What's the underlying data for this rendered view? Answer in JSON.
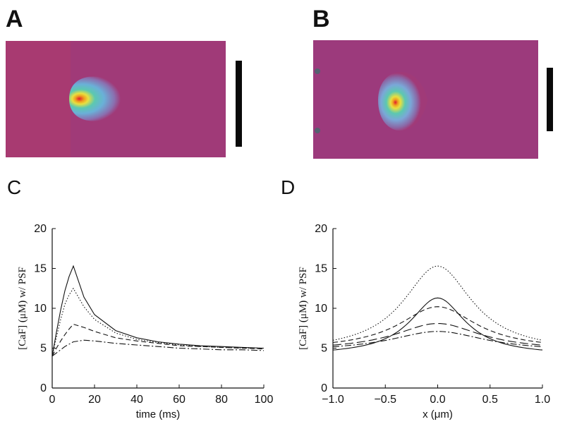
{
  "panels": {
    "A": {
      "letter": "A"
    },
    "B": {
      "letter": "B"
    },
    "C": {
      "letter": "C"
    },
    "D": {
      "letter": "D"
    }
  },
  "heatmap_colors": {
    "background": "#a03a78",
    "outer": "#7aa8d8",
    "mid": "#5cc8b0",
    "inner": "#e8e040",
    "core": "#e01a30"
  },
  "chart_data": [
    {
      "id": "C",
      "type": "line",
      "xlabel": "time (ms)",
      "ylabel": "[CaF] (μM) w/ PSF",
      "xlim": [
        0,
        100
      ],
      "ylim": [
        0,
        20
      ],
      "xticks": [
        "0",
        "20",
        "40",
        "60",
        "80",
        "100"
      ],
      "yticks": [
        "0",
        "5",
        "10",
        "15",
        "20"
      ],
      "grid": false,
      "series": [
        {
          "style": "solid",
          "x": [
            0,
            2,
            4,
            6,
            8,
            10,
            15,
            20,
            30,
            40,
            50,
            60,
            70,
            80,
            90,
            100
          ],
          "values": [
            4.0,
            7.0,
            9.8,
            12.2,
            14.0,
            15.3,
            11.4,
            9.2,
            7.2,
            6.3,
            5.8,
            5.5,
            5.3,
            5.2,
            5.1,
            5.0
          ]
        },
        {
          "style": "dotted",
          "x": [
            0,
            2,
            4,
            6,
            8,
            10,
            15,
            20,
            30,
            40,
            50,
            60,
            70,
            80,
            90,
            100
          ],
          "values": [
            4.0,
            6.4,
            8.6,
            10.5,
            11.7,
            12.5,
            10.2,
            8.6,
            6.9,
            6.1,
            5.7,
            5.4,
            5.2,
            5.1,
            5.0,
            5.0
          ]
        },
        {
          "style": "dashed",
          "x": [
            0,
            2,
            4,
            6,
            8,
            10,
            15,
            20,
            30,
            40,
            50,
            60,
            70,
            80,
            90,
            100
          ],
          "values": [
            4.0,
            5.0,
            5.9,
            6.7,
            7.4,
            8.0,
            7.6,
            7.1,
            6.3,
            5.9,
            5.6,
            5.3,
            5.2,
            5.1,
            5.0,
            4.9
          ]
        },
        {
          "style": "dashdot",
          "x": [
            0,
            2,
            4,
            6,
            8,
            10,
            15,
            20,
            30,
            40,
            50,
            60,
            70,
            80,
            90,
            100
          ],
          "values": [
            4.0,
            4.4,
            4.8,
            5.2,
            5.5,
            5.8,
            6.0,
            5.9,
            5.6,
            5.4,
            5.2,
            5.0,
            4.9,
            4.8,
            4.8,
            4.7
          ]
        }
      ]
    },
    {
      "id": "D",
      "type": "line",
      "xlabel": "x (μm)",
      "ylabel": "[CaF] (μM) w/ PSF",
      "xlim": [
        -1.0,
        1.0
      ],
      "ylim": [
        0,
        20
      ],
      "xticks": [
        "−1.0",
        "−0.5",
        "0.0",
        "0.5",
        "1.0"
      ],
      "yticks": [
        "0",
        "5",
        "10",
        "15",
        "20"
      ],
      "grid": false,
      "series": [
        {
          "style": "dotted",
          "peak": 15.3,
          "base": 4.5,
          "width": 0.4
        },
        {
          "style": "solid",
          "peak": 11.3,
          "base": 4.1,
          "width": 0.32
        },
        {
          "style": "dashed",
          "peak": 10.2,
          "base": 4.8,
          "width": 0.45
        },
        {
          "style": "longdash",
          "peak": 8.1,
          "base": 4.7,
          "width": 0.5
        },
        {
          "style": "dashdot",
          "peak": 7.1,
          "base": 4.6,
          "width": 0.55
        }
      ]
    }
  ]
}
